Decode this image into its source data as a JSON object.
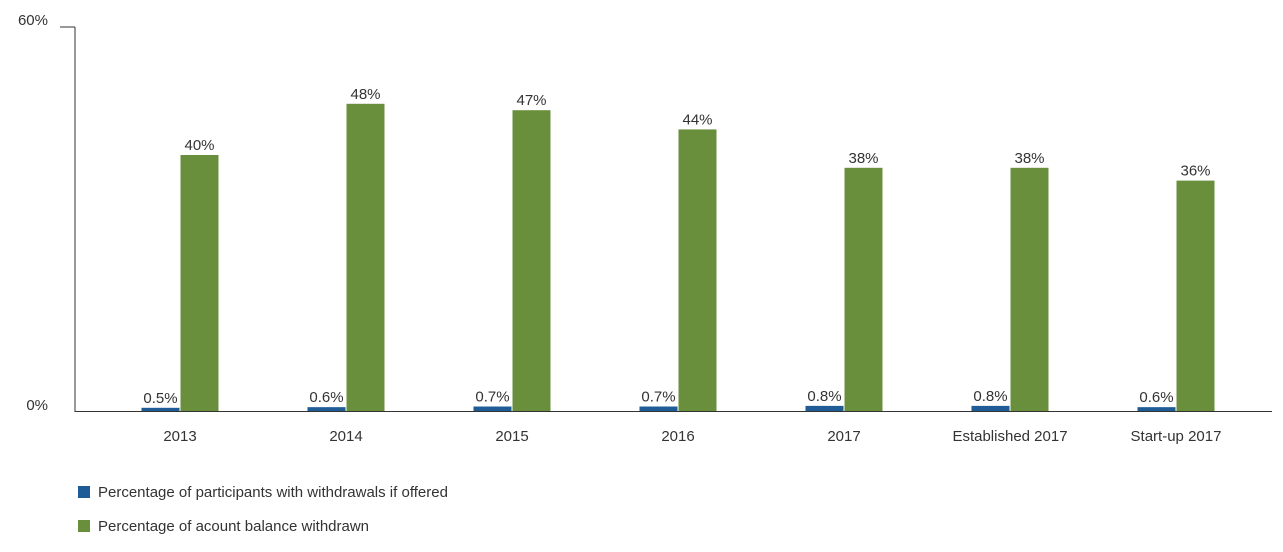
{
  "chart_data": {
    "type": "bar",
    "categories": [
      "2013",
      "2014",
      "2015",
      "2016",
      "2017",
      "Established 2017",
      "Start-up 2017"
    ],
    "series": [
      {
        "name": "Percentage of participants with withdrawals if offered",
        "color": "#1f5b94",
        "values": [
          0.5,
          0.6,
          0.7,
          0.7,
          0.8,
          0.8,
          0.6
        ],
        "labels": [
          "0.5%",
          "0.6%",
          "0.7%",
          "0.7%",
          "0.8%",
          "0.8%",
          "0.6%"
        ]
      },
      {
        "name": "Percentage of acount balance withdrawn",
        "color": "#6a8f3c",
        "values": [
          40,
          48,
          47,
          44,
          38,
          38,
          36
        ],
        "labels": [
          "40%",
          "48%",
          "47%",
          "44%",
          "38%",
          "38%",
          "36%"
        ]
      }
    ],
    "ylim": [
      0,
      60
    ],
    "yticks": [
      {
        "value": 0,
        "label": "0%"
      },
      {
        "value": 60,
        "label": "60%"
      }
    ],
    "xlabel": "",
    "ylabel": "",
    "grid": false,
    "legend_position": "bottom-left"
  }
}
